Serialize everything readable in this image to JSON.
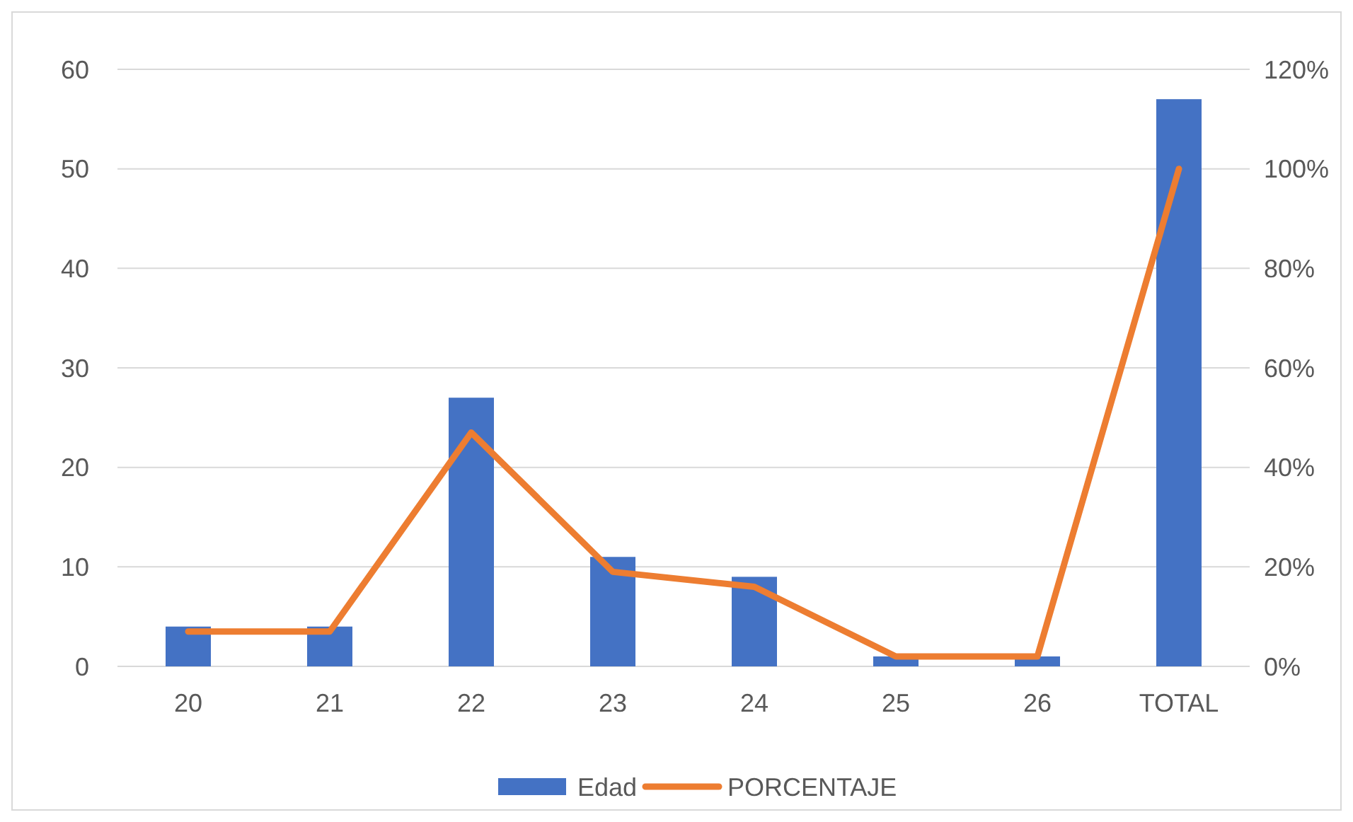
{
  "chart_data": {
    "type": "bar",
    "categories": [
      "20",
      "21",
      "22",
      "23",
      "24",
      "25",
      "26",
      "TOTAL"
    ],
    "series": [
      {
        "name": "Edad",
        "color": "#4472c4",
        "values": [
          4,
          4,
          27,
          11,
          9,
          1,
          1,
          57
        ]
      },
      {
        "name": "PORCENTAJE",
        "type": "line",
        "axis": "y2",
        "color": "#ed7d31",
        "values": [
          7,
          7,
          47,
          19,
          16,
          2,
          2,
          100
        ]
      }
    ],
    "ylim": [
      0,
      60
    ],
    "yticks": [
      0,
      10,
      20,
      30,
      40,
      50,
      60
    ],
    "y2lim": [
      0,
      120
    ],
    "y2ticks": [
      {
        "value": 0,
        "label": "0%"
      },
      {
        "value": 20,
        "label": "20%"
      },
      {
        "value": 40,
        "label": "40%"
      },
      {
        "value": 60,
        "label": "60%"
      },
      {
        "value": 80,
        "label": "80%"
      },
      {
        "value": 100,
        "label": "100%"
      },
      {
        "value": 120,
        "label": "120%"
      }
    ],
    "grid": "y",
    "legend": "bottom",
    "marker": "none",
    "line_style": "solid"
  }
}
